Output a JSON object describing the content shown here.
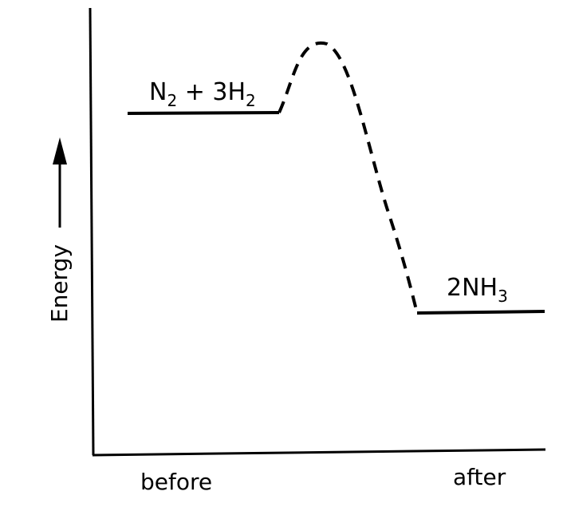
{
  "diagram": {
    "type": "energy-profile",
    "axes": {
      "y_label": "Energy",
      "x_start_label": "before",
      "x_end_label": "after"
    },
    "reactants": {
      "n2": "N",
      "n2_sub": "2",
      "plus_3h": " + 3H",
      "h2_sub": "2"
    },
    "products": {
      "nh3_prefix": "2NH",
      "nh3_sub": "3"
    },
    "colors": {
      "ink": "#000000",
      "background": "#ffffff"
    }
  }
}
